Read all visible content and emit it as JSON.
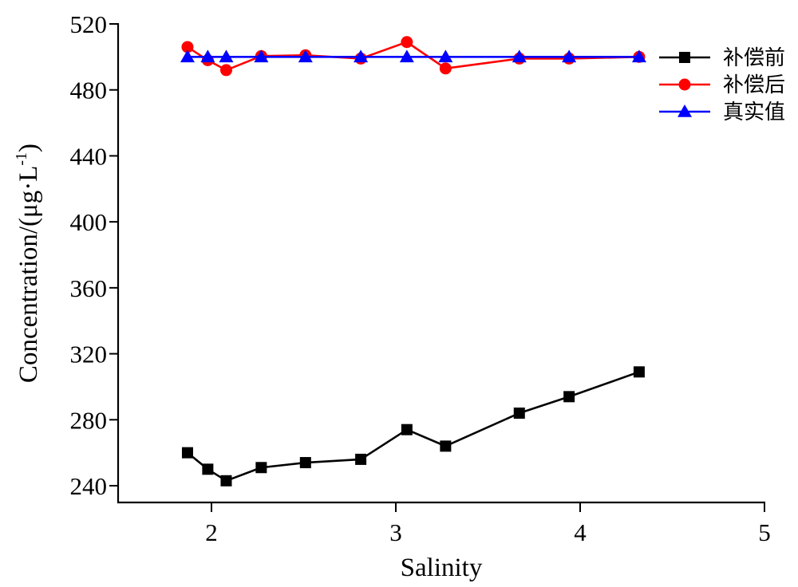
{
  "chart_data": {
    "type": "line",
    "title": "",
    "xlabel": "Salinity",
    "ylabel": "Concentration/(μg·L",
    "ylabel_superscript": "-1",
    "ylabel_suffix": ")",
    "xlim": [
      1.5,
      5
    ],
    "ylim": [
      230,
      520
    ],
    "x_ticks": [
      2,
      3,
      4,
      5
    ],
    "x_tick_labels": [
      "2",
      "3",
      "4",
      "5"
    ],
    "y_ticks": [
      240,
      280,
      320,
      360,
      400,
      440,
      480,
      520
    ],
    "y_tick_labels": [
      "240",
      "280",
      "320",
      "360",
      "400",
      "440",
      "480",
      "520"
    ],
    "grid": false,
    "legend_position": "top-right",
    "x": [
      1.87,
      1.98,
      2.08,
      2.27,
      2.51,
      2.81,
      3.06,
      3.27,
      3.67,
      3.94,
      4.32
    ],
    "series": [
      {
        "name": "补偿前",
        "color": "#000000",
        "marker": "square",
        "values": [
          260,
          250,
          243,
          251,
          254,
          256,
          274,
          264,
          284,
          294,
          309
        ]
      },
      {
        "name": "补偿后",
        "color": "#ff0000",
        "marker": "circle",
        "values": [
          506,
          498,
          492,
          500.5,
          501,
          499,
          509,
          493,
          499,
          499,
          500
        ]
      },
      {
        "name": "真实值",
        "color": "#0000ff",
        "marker": "triangle",
        "values": [
          500,
          500,
          500,
          500,
          500,
          500,
          500,
          500,
          500,
          500,
          500
        ]
      }
    ]
  }
}
